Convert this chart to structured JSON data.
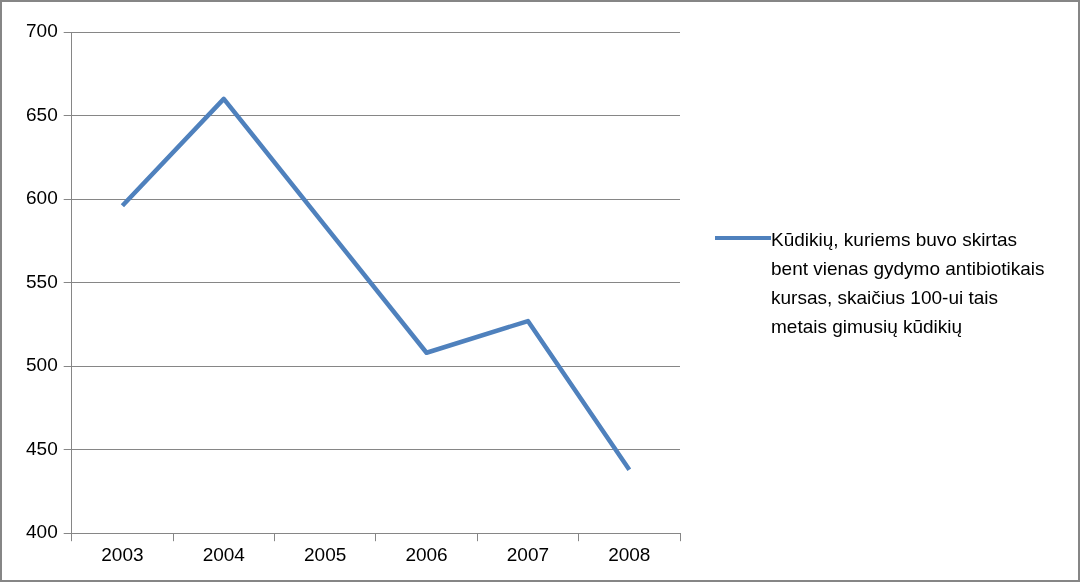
{
  "chart_data": {
    "type": "line",
    "categories": [
      "2003",
      "2004",
      "2005",
      "2006",
      "2007",
      "2008"
    ],
    "series": [
      {
        "name": "Kūdikių, kuriems buvo skirtas bent vienas gydymo antibiotikais kursas, skaičius 100-ui tais metais gimusių kūdikių",
        "color": "#4f81bd",
        "values": [
          596,
          660,
          584,
          508,
          527,
          438
        ]
      }
    ],
    "ylim": [
      400,
      700
    ],
    "yticks": [
      400,
      450,
      500,
      550,
      600,
      650,
      700
    ],
    "grid": "y",
    "legend": "right",
    "marker": "none",
    "line_style": "solid"
  }
}
